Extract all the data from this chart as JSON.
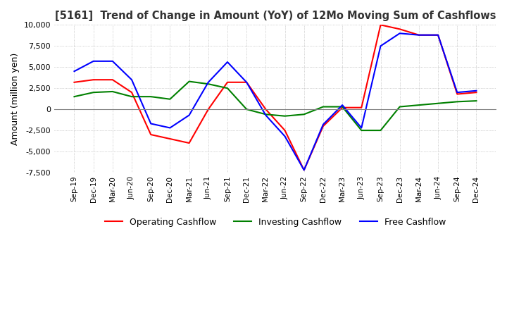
{
  "title": "[5161]  Trend of Change in Amount (YoY) of 12Mo Moving Sum of Cashflows",
  "ylabel": "Amount (million yen)",
  "ylim": [
    -7500,
    10000
  ],
  "yticks": [
    -7500,
    -5000,
    -2500,
    0,
    2500,
    5000,
    7500,
    10000
  ],
  "x_labels": [
    "Sep-19",
    "Dec-19",
    "Mar-20",
    "Jun-20",
    "Sep-20",
    "Dec-20",
    "Mar-21",
    "Jun-21",
    "Sep-21",
    "Dec-21",
    "Mar-22",
    "Jun-22",
    "Sep-22",
    "Dec-22",
    "Mar-23",
    "Jun-23",
    "Sep-23",
    "Dec-23",
    "Mar-24",
    "Jun-24",
    "Sep-24",
    "Dec-24"
  ],
  "operating": [
    3200,
    3500,
    3500,
    2000,
    -3000,
    -3500,
    -4000,
    0,
    3200,
    3200,
    0,
    -2500,
    -7200,
    -2000,
    200,
    200,
    10000,
    9500,
    8800,
    8800,
    1800,
    2000
  ],
  "investing": [
    1500,
    2000,
    2100,
    1500,
    1500,
    1200,
    3300,
    3000,
    2500,
    0,
    -600,
    -800,
    -600,
    300,
    300,
    -2500,
    -2500,
    300,
    500,
    700,
    900,
    1000
  ],
  "free": [
    4500,
    5700,
    5700,
    3500,
    -1700,
    -2200,
    -700,
    3200,
    5600,
    3200,
    -700,
    -3200,
    -7200,
    -1800,
    500,
    -2200,
    7500,
    9000,
    8800,
    8800,
    2000,
    2200
  ],
  "operating_color": "#FF0000",
  "investing_color": "#008000",
  "free_color": "#0000FF",
  "background_color": "#FFFFFF",
  "grid_color": "#AAAAAA"
}
